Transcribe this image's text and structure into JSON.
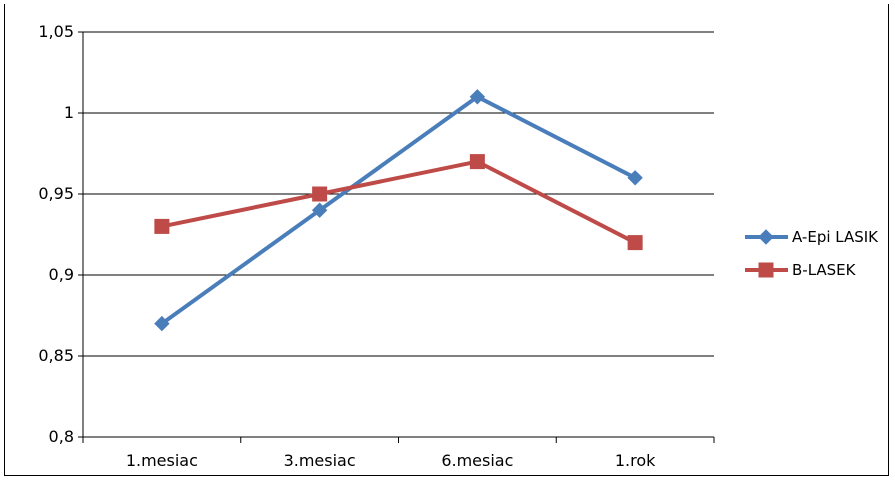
{
  "chart_data": {
    "type": "line",
    "categories": [
      "1.mesiac",
      "3.mesiac",
      "6.mesiac",
      "1.rok"
    ],
    "series": [
      {
        "name": "A-Epi LASIK",
        "values": [
          0.87,
          0.94,
          1.01,
          0.96
        ],
        "color": "#4a7ebb",
        "marker": "diamond"
      },
      {
        "name": "B-LASEK",
        "values": [
          0.93,
          0.95,
          0.97,
          0.92
        ],
        "color": "#be4b48",
        "marker": "square"
      }
    ],
    "yticks": [
      "0,8",
      "0,85",
      "0,9",
      "0,95",
      "1",
      "1,05"
    ],
    "ylim": [
      0.8,
      1.05
    ],
    "grid": true,
    "legend": "right",
    "title": "",
    "xlabel": "",
    "ylabel": ""
  }
}
